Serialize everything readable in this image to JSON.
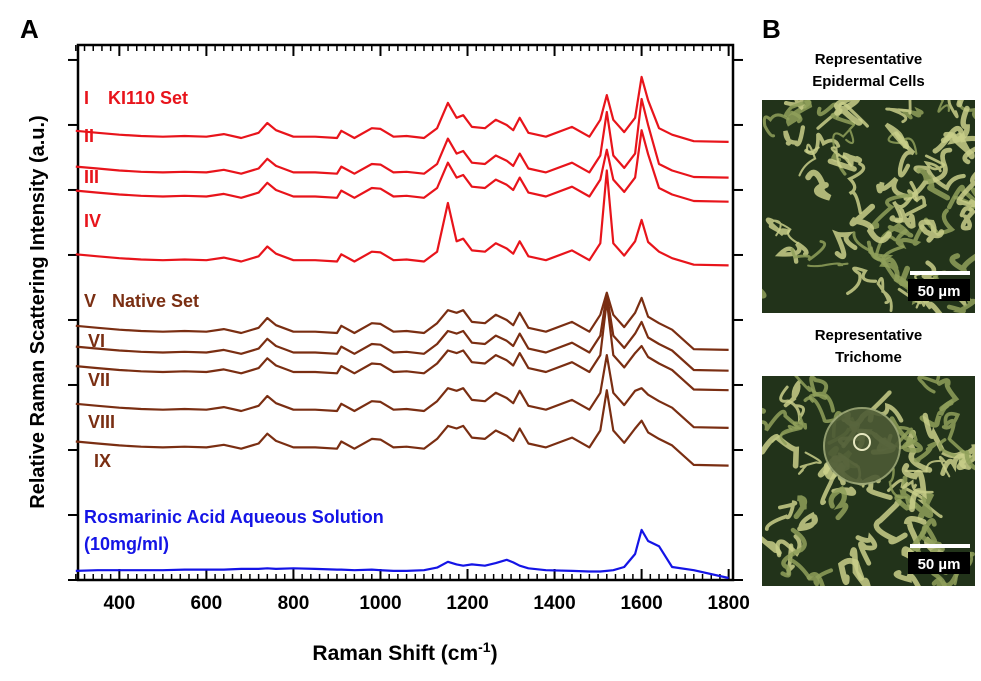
{
  "chart_data": {
    "type": "line",
    "panel_label": "A",
    "y_label": "Relative Raman Scattering Intensity (a.u.)",
    "x_label": {
      "text": "Raman Shift (cm",
      "sup": "-1",
      "end": ")"
    },
    "xlim": [
      305,
      1810
    ],
    "ylim": [
      0,
      8.23
    ],
    "xticks": [
      400,
      600,
      800,
      1000,
      1200,
      1400,
      1600,
      1800
    ],
    "xticks_minor": [
      300,
      320,
      340,
      360,
      380,
      400,
      420,
      440,
      460,
      480,
      500,
      520,
      540,
      560,
      580,
      600,
      620,
      640,
      660,
      680,
      700,
      720,
      740,
      760,
      780,
      800,
      820,
      840,
      860,
      880,
      900,
      920,
      940,
      960,
      980,
      1000,
      1020,
      1040,
      1060,
      1080,
      1100,
      1120,
      1140,
      1160,
      1180,
      1200,
      1220,
      1240,
      1260,
      1280,
      1300,
      1320,
      1340,
      1360,
      1380,
      1400,
      1420,
      1440,
      1460,
      1480,
      1500,
      1520,
      1540,
      1560,
      1580,
      1600,
      1620,
      1640,
      1660,
      1680,
      1700,
      1720,
      1740,
      1760,
      1780,
      1800
    ],
    "yticks": [
      0,
      1,
      2,
      3,
      4,
      5,
      6,
      7,
      8
    ],
    "annotations": [
      "KI110 Set",
      "Native Set",
      "(10mg/ml)"
    ],
    "x": [
      300,
      350,
      400,
      450,
      500,
      550,
      600,
      640,
      680,
      720,
      740,
      760,
      800,
      850,
      900,
      910,
      940,
      980,
      1000,
      1030,
      1060,
      1100,
      1130,
      1155,
      1175,
      1190,
      1210,
      1240,
      1265,
      1290,
      1305,
      1320,
      1340,
      1380,
      1440,
      1480,
      1505,
      1520,
      1535,
      1560,
      1585,
      1600,
      1615,
      1640,
      1670,
      1720,
      1800
    ],
    "series": [
      {
        "name": "I",
        "color": "#e8141b",
        "values": [
          6.91,
          6.88,
          6.85,
          6.83,
          6.82,
          6.83,
          6.82,
          6.86,
          6.8,
          6.88,
          7.03,
          6.92,
          6.82,
          6.82,
          6.8,
          6.91,
          6.8,
          6.95,
          6.94,
          6.82,
          6.83,
          6.8,
          6.95,
          7.34,
          7.11,
          7.15,
          6.97,
          6.95,
          7.08,
          7.0,
          6.92,
          7.11,
          6.88,
          6.82,
          6.97,
          6.82,
          7.08,
          7.46,
          7.08,
          6.89,
          7.11,
          7.74,
          7.38,
          6.95,
          6.85,
          6.75,
          6.74
        ]
      },
      {
        "name": "II",
        "color": "#e8141b",
        "values": [
          6.36,
          6.33,
          6.3,
          6.28,
          6.27,
          6.28,
          6.27,
          6.31,
          6.25,
          6.33,
          6.48,
          6.37,
          6.27,
          6.27,
          6.25,
          6.36,
          6.25,
          6.4,
          6.39,
          6.27,
          6.28,
          6.25,
          6.4,
          6.79,
          6.56,
          6.6,
          6.42,
          6.4,
          6.53,
          6.45,
          6.37,
          6.56,
          6.33,
          6.27,
          6.42,
          6.27,
          6.53,
          7.2,
          6.53,
          6.34,
          6.56,
          7.4,
          7.0,
          6.4,
          6.3,
          6.2,
          6.19
        ]
      },
      {
        "name": "III",
        "color": "#e8141b",
        "values": [
          5.99,
          5.96,
          5.93,
          5.91,
          5.9,
          5.91,
          5.9,
          5.94,
          5.88,
          5.96,
          6.11,
          6.0,
          5.9,
          5.9,
          5.88,
          5.99,
          5.88,
          6.03,
          6.02,
          5.9,
          5.91,
          5.88,
          6.03,
          6.42,
          6.19,
          6.23,
          6.05,
          6.03,
          6.16,
          6.08,
          6.0,
          6.19,
          5.96,
          5.9,
          6.05,
          5.9,
          6.16,
          6.62,
          6.16,
          5.97,
          6.19,
          6.92,
          6.55,
          6.03,
          5.93,
          5.83,
          5.82
        ]
      },
      {
        "name": "IV",
        "color": "#e8141b",
        "values": [
          5.01,
          4.98,
          4.95,
          4.93,
          4.92,
          4.93,
          4.92,
          4.96,
          4.9,
          4.98,
          5.13,
          5.02,
          4.92,
          4.92,
          4.9,
          5.01,
          4.9,
          5.05,
          5.04,
          4.92,
          4.93,
          4.9,
          5.05,
          5.8,
          5.21,
          5.25,
          5.07,
          5.05,
          5.18,
          5.1,
          5.02,
          5.21,
          4.98,
          4.92,
          5.07,
          4.92,
          5.18,
          6.3,
          5.18,
          4.99,
          5.21,
          5.54,
          5.2,
          5.05,
          4.95,
          4.85,
          4.84
        ]
      },
      {
        "name": "V",
        "color": "#7a2e12",
        "values": [
          3.91,
          3.88,
          3.85,
          3.83,
          3.82,
          3.83,
          3.82,
          3.86,
          3.8,
          3.88,
          4.03,
          3.92,
          3.82,
          3.82,
          3.8,
          3.91,
          3.8,
          3.95,
          3.94,
          3.82,
          3.83,
          3.8,
          3.95,
          4.15,
          4.11,
          4.15,
          3.97,
          3.95,
          4.08,
          4.0,
          3.92,
          4.11,
          3.88,
          3.82,
          3.97,
          3.82,
          4.08,
          4.42,
          4.08,
          3.89,
          4.11,
          4.34,
          4.05,
          3.95,
          3.85,
          3.55,
          3.54
        ]
      },
      {
        "name": "VI",
        "color": "#7a2e12",
        "values": [
          3.59,
          3.56,
          3.53,
          3.51,
          3.5,
          3.51,
          3.5,
          3.54,
          3.48,
          3.56,
          3.71,
          3.6,
          3.5,
          3.5,
          3.48,
          3.59,
          3.48,
          3.63,
          3.62,
          3.5,
          3.51,
          3.48,
          3.63,
          3.83,
          3.79,
          3.83,
          3.65,
          3.63,
          3.76,
          3.68,
          3.6,
          3.79,
          3.56,
          3.5,
          3.65,
          3.5,
          3.76,
          4.4,
          3.76,
          3.57,
          3.79,
          3.97,
          3.73,
          3.63,
          3.53,
          3.23,
          3.22
        ]
      },
      {
        "name": "VII",
        "color": "#7a2e12",
        "values": [
          3.29,
          3.26,
          3.23,
          3.21,
          3.2,
          3.21,
          3.2,
          3.24,
          3.18,
          3.26,
          3.41,
          3.3,
          3.2,
          3.2,
          3.18,
          3.29,
          3.18,
          3.33,
          3.32,
          3.2,
          3.21,
          3.18,
          3.33,
          3.53,
          3.49,
          3.53,
          3.35,
          3.33,
          3.46,
          3.38,
          3.3,
          3.49,
          3.26,
          3.2,
          3.35,
          3.2,
          3.46,
          4.3,
          3.46,
          3.27,
          3.49,
          3.6,
          3.43,
          3.33,
          3.23,
          2.93,
          2.92
        ]
      },
      {
        "name": "VIII",
        "color": "#7a2e12",
        "values": [
          2.71,
          2.68,
          2.65,
          2.63,
          2.62,
          2.63,
          2.62,
          2.66,
          2.6,
          2.68,
          2.83,
          2.72,
          2.62,
          2.62,
          2.6,
          2.71,
          2.6,
          2.75,
          2.74,
          2.62,
          2.63,
          2.6,
          2.75,
          2.95,
          2.91,
          2.95,
          2.77,
          2.75,
          2.88,
          2.8,
          2.72,
          2.91,
          2.68,
          2.62,
          2.77,
          2.62,
          2.88,
          3.46,
          2.88,
          2.69,
          2.91,
          2.95,
          2.85,
          2.75,
          2.65,
          2.35,
          2.34
        ]
      },
      {
        "name": "IX",
        "color": "#7a2e12",
        "values": [
          2.13,
          2.1,
          2.07,
          2.05,
          2.04,
          2.05,
          2.04,
          2.08,
          2.02,
          2.1,
          2.25,
          2.14,
          2.04,
          2.04,
          2.02,
          2.13,
          2.02,
          2.17,
          2.16,
          2.04,
          2.05,
          2.02,
          2.17,
          2.37,
          2.33,
          2.37,
          2.19,
          2.17,
          2.3,
          2.22,
          2.14,
          2.33,
          2.1,
          2.04,
          2.19,
          2.04,
          2.3,
          2.92,
          2.3,
          2.11,
          2.33,
          2.45,
          2.27,
          2.17,
          2.07,
          1.77,
          1.76
        ]
      },
      {
        "name": "Rosmarinic Acid Aqueous Solution",
        "color": "#1414e6",
        "values": [
          0.14,
          0.15,
          0.15,
          0.15,
          0.15,
          0.16,
          0.16,
          0.16,
          0.17,
          0.17,
          0.18,
          0.17,
          0.18,
          0.17,
          0.16,
          0.16,
          0.15,
          0.16,
          0.15,
          0.14,
          0.14,
          0.15,
          0.19,
          0.28,
          0.24,
          0.22,
          0.24,
          0.22,
          0.26,
          0.31,
          0.27,
          0.22,
          0.18,
          0.15,
          0.14,
          0.13,
          0.13,
          0.14,
          0.15,
          0.2,
          0.4,
          0.77,
          0.6,
          0.52,
          0.2,
          0.15,
          0.03
        ]
      }
    ]
  },
  "panel_b": {
    "label": "B",
    "images": [
      {
        "title": [
          "Representative",
          "Epidermal Cells"
        ],
        "scale": "50 µm"
      },
      {
        "title": [
          "Representative",
          "Trichome"
        ],
        "scale": "50 µm"
      }
    ]
  }
}
